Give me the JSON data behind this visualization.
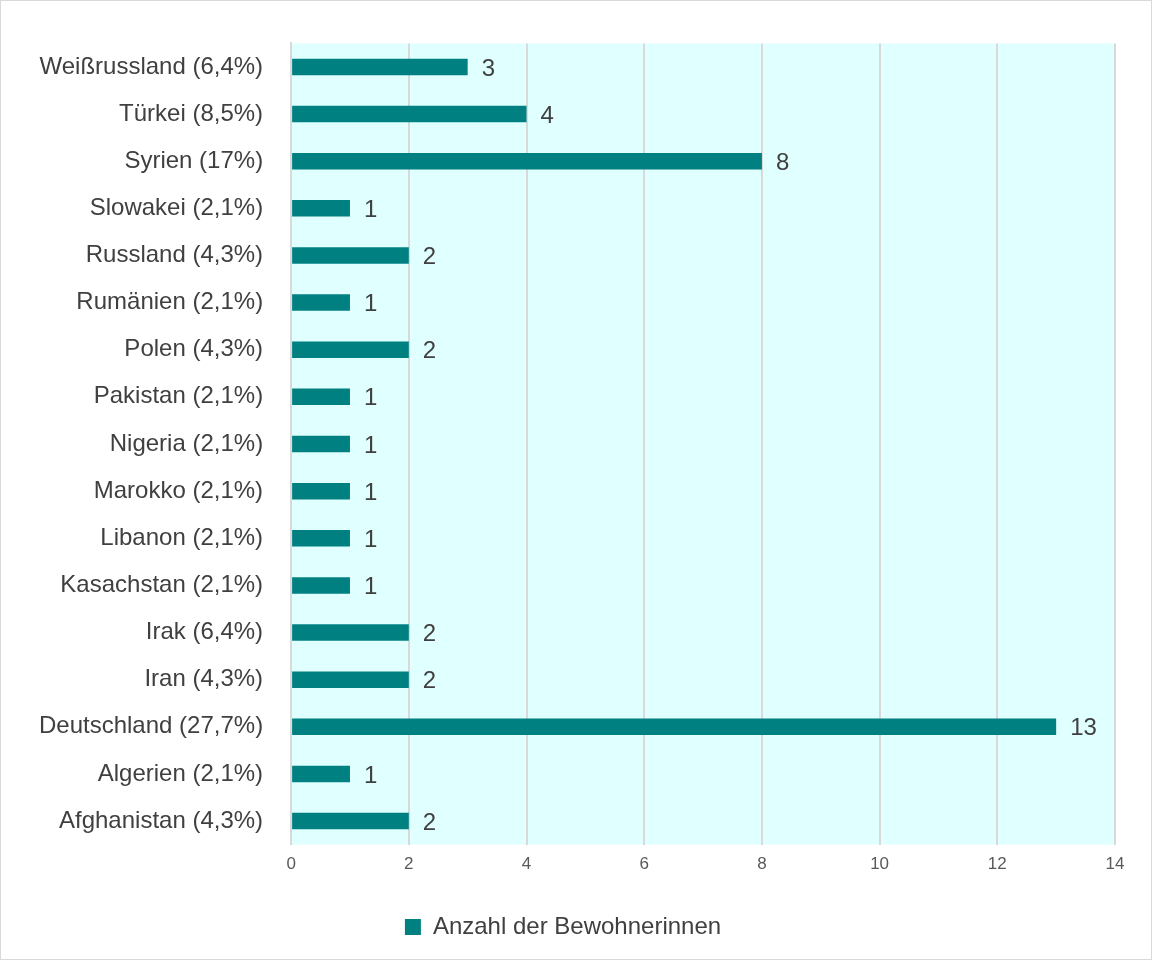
{
  "chart_data": {
    "type": "bar",
    "orientation": "horizontal",
    "categories": [
      "Weißrussland (6,4%)",
      "Türkei (8,5%)",
      "Syrien (17%)",
      "Slowakei (2,1%)",
      "Russland (4,3%)",
      "Rumänien (2,1%)",
      "Polen (4,3%)",
      "Pakistan (2,1%)",
      "Nigeria (2,1%)",
      "Marokko (2,1%)",
      "Libanon (2,1%)",
      "Kasachstan (2,1%)",
      "Irak (6,4%)",
      "Iran (4,3%)",
      "Deutschland (27,7%)",
      "Algerien (2,1%)",
      "Afghanistan (4,3%)"
    ],
    "series": [
      {
        "name": "Anzahl der Bewohnerinnen",
        "color": "#008080",
        "values": [
          3,
          4,
          8,
          1,
          2,
          1,
          2,
          1,
          1,
          1,
          1,
          1,
          2,
          2,
          13,
          1,
          2
        ]
      }
    ],
    "xlim": [
      0,
      14
    ],
    "xticks": [
      0,
      2,
      4,
      6,
      8,
      10,
      12,
      14
    ],
    "grid": "x",
    "legend": "bottom",
    "data_labels": true
  }
}
